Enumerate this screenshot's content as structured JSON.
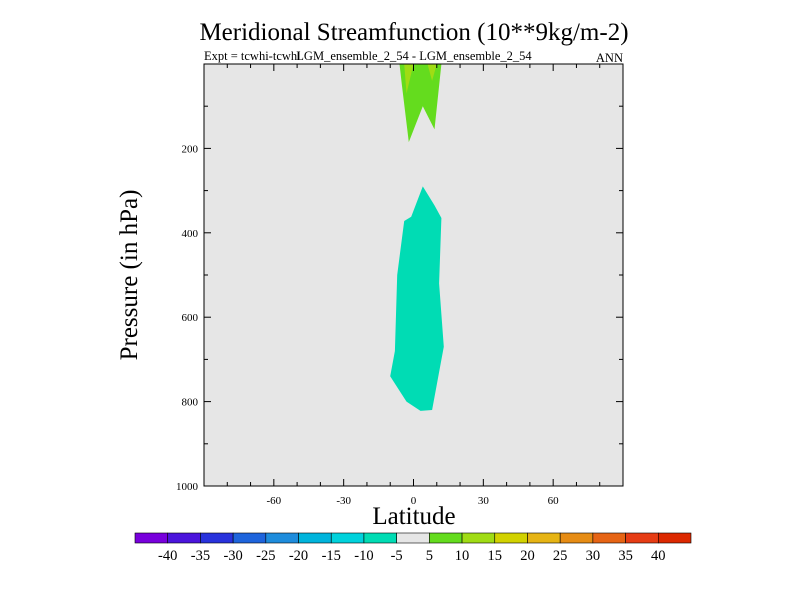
{
  "chart_data": {
    "type": "contour",
    "title": "Meridional Streamfunction (10**9kg/m-2)",
    "left_label": "Expt = tcwhi-tcwhl",
    "center_label": "LGM_ensemble_2_54 - LGM_ensemble_2_54",
    "right_label": "ANN",
    "xlabel": "Latitude",
    "ylabel": "Pressure (in hPa)",
    "xlim": [
      -90,
      90
    ],
    "ylim": [
      1000,
      0
    ],
    "x_ticks": [
      -60,
      -30,
      0,
      30,
      60
    ],
    "y_ticks": [
      200,
      400,
      600,
      800,
      1000
    ],
    "background_color": "#e6e6e6",
    "filled_regions": [
      {
        "name": "negative-cell",
        "range": "-10 to -5",
        "color": "#00dcb4",
        "points": [
          [
            -4,
            372
          ],
          [
            -1,
            362
          ],
          [
            4,
            290
          ],
          [
            9,
            335
          ],
          [
            12,
            365
          ],
          [
            11,
            520
          ],
          [
            13,
            670
          ],
          [
            8,
            820
          ],
          [
            3,
            822
          ],
          [
            -3,
            800
          ],
          [
            -10,
            740
          ],
          [
            -8,
            680
          ],
          [
            -7,
            500
          ]
        ]
      },
      {
        "name": "positive-cell-upper",
        "range": "5 to 10",
        "color": "#64dc1e",
        "points": [
          [
            -6,
            0
          ],
          [
            12,
            0
          ],
          [
            9,
            155
          ],
          [
            4,
            100
          ],
          [
            -2,
            185
          ],
          [
            -5,
            50
          ]
        ]
      },
      {
        "name": "positive-cell-core-1",
        "range": "10 to 15",
        "color": "#a0dc14",
        "points": [
          [
            -4,
            0
          ],
          [
            0,
            0
          ],
          [
            -3,
            70
          ]
        ]
      },
      {
        "name": "positive-cell-core-2",
        "range": "10 to 15",
        "color": "#a0dc14",
        "points": [
          [
            6,
            0
          ],
          [
            10,
            0
          ],
          [
            8,
            40
          ]
        ]
      }
    ],
    "colorbar": {
      "labels": [
        "-40",
        "-35",
        "-30",
        "-25",
        "-20",
        "-15",
        "-10",
        "-5",
        "5",
        "10",
        "15",
        "20",
        "25",
        "30",
        "35",
        "40"
      ],
      "colors": [
        "#7800dc",
        "#4b14dc",
        "#2832dc",
        "#1e64dc",
        "#1e8cdc",
        "#00b4dc",
        "#00d2dc",
        "#00dcb4",
        "#e6e6e6",
        "#64dc1e",
        "#a0dc14",
        "#d2d200",
        "#e6b414",
        "#e68c14",
        "#e66414",
        "#e63c14",
        "#dc2800"
      ]
    }
  }
}
